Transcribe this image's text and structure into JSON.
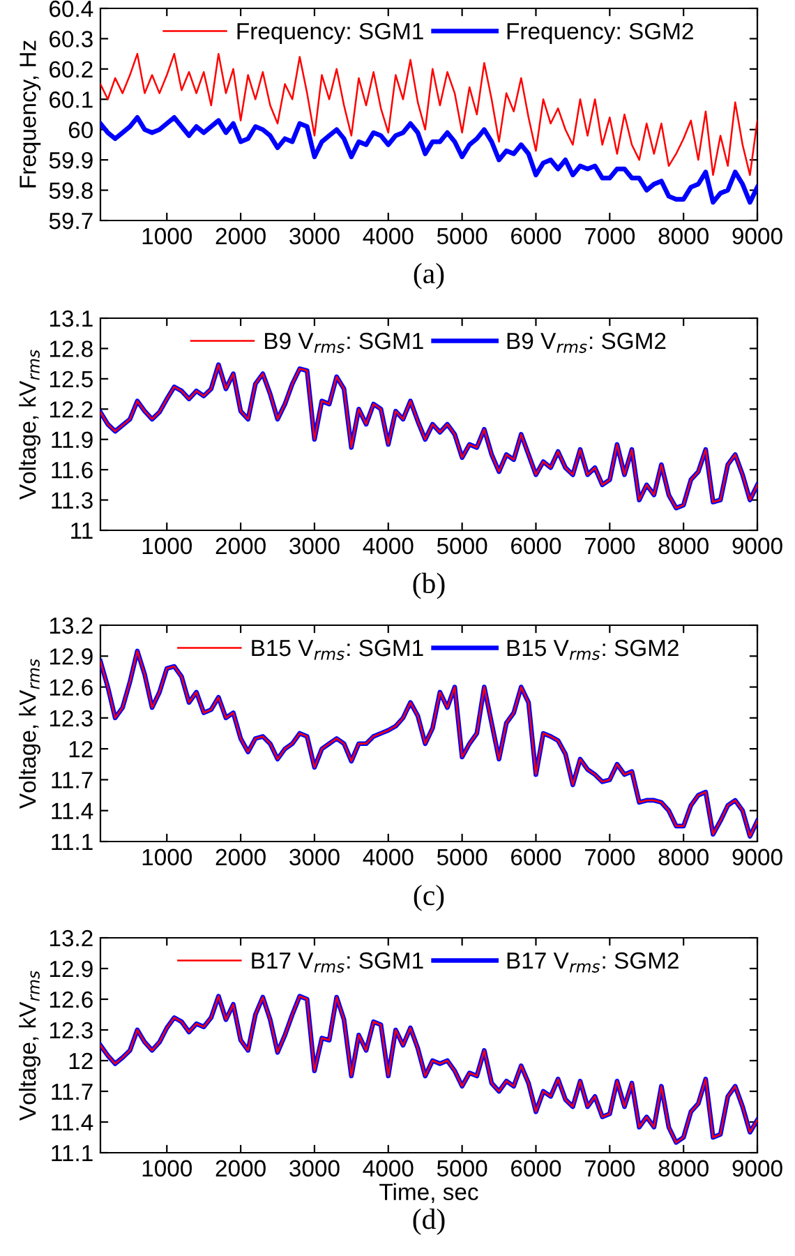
{
  "chart_data": [
    {
      "type": "line",
      "ylabel": "Frequency, Hz",
      "annotations": [
        "(a)"
      ],
      "legend": "top",
      "grid": false,
      "xlim": [
        100,
        9000
      ],
      "xticks": [
        1000,
        2000,
        3000,
        4000,
        5000,
        6000,
        7000,
        8000,
        9000
      ],
      "ylim": [
        59.7,
        60.4
      ],
      "yticks": [
        59.7,
        59.8,
        59.9,
        60,
        60.1,
        60.2,
        60.3,
        60.4
      ],
      "x": [
        100,
        200,
        300,
        400,
        500,
        600,
        700,
        800,
        900,
        1000,
        1100,
        1200,
        1300,
        1400,
        1500,
        1600,
        1700,
        1800,
        1900,
        2000,
        2100,
        2200,
        2300,
        2400,
        2500,
        2600,
        2700,
        2800,
        2900,
        3000,
        3100,
        3200,
        3300,
        3400,
        3500,
        3600,
        3700,
        3800,
        3900,
        4000,
        4100,
        4200,
        4300,
        4400,
        4500,
        4600,
        4700,
        4800,
        4900,
        5000,
        5100,
        5200,
        5300,
        5400,
        5500,
        5600,
        5700,
        5800,
        5900,
        6000,
        6100,
        6200,
        6300,
        6400,
        6500,
        6600,
        6700,
        6800,
        6900,
        7000,
        7100,
        7200,
        7300,
        7400,
        7500,
        7600,
        7700,
        7800,
        7900,
        8000,
        8100,
        8200,
        8300,
        8400,
        8500,
        8600,
        8700,
        8800,
        8900,
        9000
      ],
      "series": [
        {
          "name": "Frequency: SGM1",
          "color": "#ff0000",
          "values": [
            60.15,
            60.1,
            60.17,
            60.12,
            60.18,
            60.25,
            60.12,
            60.18,
            60.12,
            60.18,
            60.25,
            60.13,
            60.19,
            60.12,
            60.19,
            60.08,
            60.25,
            60.12,
            60.2,
            60.03,
            60.18,
            60.1,
            60.19,
            60.08,
            60.02,
            60.15,
            60.1,
            60.24,
            60.12,
            59.98,
            60.18,
            60.1,
            60.2,
            60.08,
            59.98,
            60.17,
            60.08,
            60.19,
            60.07,
            59.99,
            60.18,
            60.1,
            60.23,
            60.09,
            60.0,
            60.2,
            60.08,
            60.19,
            60.12,
            59.99,
            60.14,
            60.05,
            60.22,
            60.1,
            59.96,
            60.12,
            60.06,
            60.17,
            60.04,
            59.93,
            60.1,
            60.02,
            60.07,
            60.0,
            59.95,
            60.1,
            59.98,
            60.1,
            59.95,
            60.04,
            59.92,
            60.05,
            59.95,
            59.9,
            60.02,
            59.92,
            60.02,
            59.88,
            59.92,
            59.97,
            60.03,
            59.9,
            60.06,
            59.85,
            59.98,
            59.88,
            60.09,
            59.95,
            59.85,
            60.03
          ]
        },
        {
          "name": "Frequency: SGM2",
          "color": "#0000ff",
          "values": [
            60.02,
            59.99,
            59.97,
            59.99,
            60.01,
            60.04,
            60.0,
            59.99,
            60.0,
            60.02,
            60.04,
            60.01,
            59.98,
            60.01,
            59.99,
            60.01,
            60.03,
            59.99,
            60.02,
            59.96,
            59.97,
            60.01,
            60.0,
            59.98,
            59.94,
            59.97,
            59.96,
            60.02,
            60.01,
            59.91,
            59.96,
            59.98,
            60.0,
            59.97,
            59.91,
            59.96,
            59.95,
            59.99,
            59.98,
            59.95,
            59.98,
            59.99,
            60.02,
            59.99,
            59.92,
            59.96,
            59.96,
            59.99,
            59.96,
            59.91,
            59.95,
            59.97,
            60.0,
            59.96,
            59.9,
            59.93,
            59.92,
            59.95,
            59.92,
            59.85,
            59.89,
            59.9,
            59.87,
            59.9,
            59.85,
            59.88,
            59.87,
            59.88,
            59.84,
            59.84,
            59.87,
            59.87,
            59.84,
            59.84,
            59.8,
            59.82,
            59.83,
            59.78,
            59.77,
            59.77,
            59.81,
            59.82,
            59.86,
            59.76,
            59.79,
            59.8,
            59.86,
            59.82,
            59.76,
            59.81
          ]
        }
      ]
    },
    {
      "type": "line",
      "ylabel": "Voltage, kV$_{rms}$",
      "annotations": [
        "(b)"
      ],
      "legend": "top",
      "grid": false,
      "xlim": [
        100,
        9000
      ],
      "xticks": [
        1000,
        2000,
        3000,
        4000,
        5000,
        6000,
        7000,
        8000,
        9000
      ],
      "ylim": [
        11,
        13.1
      ],
      "yticks": [
        11,
        11.3,
        11.6,
        11.9,
        12.2,
        12.5,
        12.8,
        13.1
      ],
      "x": [
        100,
        200,
        300,
        400,
        500,
        600,
        700,
        800,
        900,
        1000,
        1100,
        1200,
        1300,
        1400,
        1500,
        1600,
        1700,
        1800,
        1900,
        2000,
        2100,
        2200,
        2300,
        2400,
        2500,
        2600,
        2700,
        2800,
        2900,
        3000,
        3100,
        3200,
        3300,
        3400,
        3500,
        3600,
        3700,
        3800,
        3900,
        4000,
        4100,
        4200,
        4300,
        4400,
        4500,
        4600,
        4700,
        4800,
        4900,
        5000,
        5100,
        5200,
        5300,
        5400,
        5500,
        5600,
        5700,
        5800,
        5900,
        6000,
        6100,
        6200,
        6300,
        6400,
        6500,
        6600,
        6700,
        6800,
        6900,
        7000,
        7100,
        7200,
        7300,
        7400,
        7500,
        7600,
        7700,
        7800,
        7900,
        8000,
        8100,
        8200,
        8300,
        8400,
        8500,
        8600,
        8700,
        8800,
        8900,
        9000
      ],
      "series": [
        {
          "name": "B9 V$_{rms}$: SGM1",
          "color": "#ff0000",
          "values": [
            12.17,
            12.05,
            11.98,
            12.04,
            12.1,
            12.28,
            12.18,
            12.1,
            12.17,
            12.3,
            12.42,
            12.38,
            12.3,
            12.38,
            12.33,
            12.4,
            12.64,
            12.4,
            12.55,
            12.18,
            12.1,
            12.45,
            12.55,
            12.35,
            12.1,
            12.25,
            12.45,
            12.6,
            12.58,
            11.9,
            12.28,
            12.25,
            12.52,
            12.4,
            11.82,
            12.2,
            12.05,
            12.25,
            12.2,
            11.85,
            12.18,
            12.1,
            12.28,
            12.08,
            11.9,
            12.05,
            11.97,
            12.05,
            11.95,
            11.72,
            11.85,
            11.82,
            12.0,
            11.75,
            11.58,
            11.75,
            11.7,
            11.95,
            11.75,
            11.55,
            11.68,
            11.62,
            11.78,
            11.62,
            11.55,
            11.8,
            11.55,
            11.62,
            11.45,
            11.5,
            11.85,
            11.55,
            11.8,
            11.3,
            11.45,
            11.35,
            11.65,
            11.35,
            11.22,
            11.25,
            11.5,
            11.58,
            11.8,
            11.28,
            11.3,
            11.65,
            11.75,
            11.55,
            11.3,
            11.45
          ]
        },
        {
          "name": "B9 V$_{rms}$: SGM2",
          "color": "#0000ff",
          "values": [
            12.17,
            12.05,
            11.98,
            12.04,
            12.1,
            12.28,
            12.18,
            12.1,
            12.17,
            12.3,
            12.42,
            12.38,
            12.3,
            12.38,
            12.33,
            12.4,
            12.64,
            12.4,
            12.55,
            12.18,
            12.1,
            12.45,
            12.55,
            12.35,
            12.1,
            12.25,
            12.45,
            12.6,
            12.58,
            11.9,
            12.28,
            12.25,
            12.52,
            12.4,
            11.82,
            12.2,
            12.05,
            12.25,
            12.2,
            11.85,
            12.18,
            12.1,
            12.28,
            12.08,
            11.9,
            12.05,
            11.97,
            12.05,
            11.95,
            11.72,
            11.85,
            11.82,
            12.0,
            11.75,
            11.58,
            11.75,
            11.7,
            11.95,
            11.75,
            11.55,
            11.68,
            11.62,
            11.78,
            11.62,
            11.55,
            11.8,
            11.55,
            11.62,
            11.45,
            11.5,
            11.85,
            11.55,
            11.8,
            11.3,
            11.45,
            11.35,
            11.65,
            11.35,
            11.22,
            11.25,
            11.5,
            11.58,
            11.8,
            11.28,
            11.3,
            11.65,
            11.75,
            11.55,
            11.3,
            11.45
          ]
        }
      ]
    },
    {
      "type": "line",
      "ylabel": "Voltage, kV$_{rms}$",
      "annotations": [
        "(c)"
      ],
      "legend": "top",
      "grid": false,
      "xlim": [
        100,
        9000
      ],
      "xticks": [
        1000,
        2000,
        3000,
        4000,
        5000,
        6000,
        7000,
        8000,
        9000
      ],
      "ylim": [
        11.1,
        13.2
      ],
      "yticks": [
        11.1,
        11.4,
        11.7,
        12,
        12.3,
        12.6,
        12.9,
        13.2
      ],
      "x": [
        100,
        200,
        300,
        400,
        500,
        600,
        700,
        800,
        900,
        1000,
        1100,
        1200,
        1300,
        1400,
        1500,
        1600,
        1700,
        1800,
        1900,
        2000,
        2100,
        2200,
        2300,
        2400,
        2500,
        2600,
        2700,
        2800,
        2900,
        3000,
        3100,
        3200,
        3300,
        3400,
        3500,
        3600,
        3700,
        3800,
        3900,
        4000,
        4100,
        4200,
        4300,
        4400,
        4500,
        4600,
        4700,
        4800,
        4900,
        5000,
        5100,
        5200,
        5300,
        5400,
        5500,
        5600,
        5700,
        5800,
        5900,
        6000,
        6100,
        6200,
        6300,
        6400,
        6500,
        6600,
        6700,
        6800,
        6900,
        7000,
        7100,
        7200,
        7300,
        7400,
        7500,
        7600,
        7700,
        7800,
        7900,
        8000,
        8100,
        8200,
        8300,
        8400,
        8500,
        8600,
        8700,
        8800,
        8900,
        9000
      ],
      "series": [
        {
          "name": "B15 V$_{rms}$: SGM1",
          "color": "#ff0000",
          "values": [
            12.85,
            12.6,
            12.3,
            12.4,
            12.65,
            12.95,
            12.72,
            12.4,
            12.55,
            12.78,
            12.8,
            12.7,
            12.45,
            12.55,
            12.35,
            12.38,
            12.5,
            12.3,
            12.35,
            12.1,
            11.97,
            12.1,
            12.12,
            12.05,
            11.9,
            12.0,
            12.05,
            12.15,
            12.12,
            11.82,
            12.0,
            12.05,
            12.1,
            12.05,
            11.88,
            12.05,
            12.05,
            12.12,
            12.15,
            12.18,
            12.22,
            12.3,
            12.45,
            12.32,
            12.05,
            12.2,
            12.55,
            12.4,
            12.6,
            11.92,
            12.05,
            12.15,
            12.6,
            12.25,
            11.9,
            12.25,
            12.35,
            12.6,
            12.45,
            11.75,
            12.15,
            12.12,
            12.08,
            11.95,
            11.65,
            11.9,
            11.8,
            11.75,
            11.68,
            11.7,
            11.85,
            11.75,
            11.78,
            11.48,
            11.5,
            11.5,
            11.48,
            11.4,
            11.25,
            11.25,
            11.45,
            11.55,
            11.58,
            11.17,
            11.3,
            11.45,
            11.5,
            11.4,
            11.15,
            11.3
          ]
        },
        {
          "name": "B15 V$_{rms}$: SGM2",
          "color": "#0000ff",
          "values": [
            12.85,
            12.6,
            12.3,
            12.4,
            12.65,
            12.95,
            12.72,
            12.4,
            12.55,
            12.78,
            12.8,
            12.7,
            12.45,
            12.55,
            12.35,
            12.38,
            12.5,
            12.3,
            12.35,
            12.1,
            11.97,
            12.1,
            12.12,
            12.05,
            11.9,
            12.0,
            12.05,
            12.15,
            12.12,
            11.82,
            12.0,
            12.05,
            12.1,
            12.05,
            11.88,
            12.05,
            12.05,
            12.12,
            12.15,
            12.18,
            12.22,
            12.3,
            12.45,
            12.32,
            12.05,
            12.2,
            12.55,
            12.4,
            12.6,
            11.92,
            12.05,
            12.15,
            12.6,
            12.25,
            11.9,
            12.25,
            12.35,
            12.6,
            12.45,
            11.75,
            12.15,
            12.12,
            12.08,
            11.95,
            11.65,
            11.9,
            11.8,
            11.75,
            11.68,
            11.7,
            11.85,
            11.75,
            11.78,
            11.48,
            11.5,
            11.5,
            11.48,
            11.4,
            11.25,
            11.25,
            11.45,
            11.55,
            11.58,
            11.17,
            11.3,
            11.45,
            11.5,
            11.4,
            11.15,
            11.3
          ]
        }
      ]
    },
    {
      "type": "line",
      "xlabel": "Time, sec",
      "ylabel": "Voltage, kV$_{rms}$",
      "annotations": [
        "(d)"
      ],
      "legend": "top",
      "grid": false,
      "xlim": [
        100,
        9000
      ],
      "xticks": [
        1000,
        2000,
        3000,
        4000,
        5000,
        6000,
        7000,
        8000,
        9000
      ],
      "ylim": [
        11.1,
        13.2
      ],
      "yticks": [
        11.1,
        11.4,
        11.7,
        12,
        12.3,
        12.6,
        12.9,
        13.2
      ],
      "x": [
        100,
        200,
        300,
        400,
        500,
        600,
        700,
        800,
        900,
        1000,
        1100,
        1200,
        1300,
        1400,
        1500,
        1600,
        1700,
        1800,
        1900,
        2000,
        2100,
        2200,
        2300,
        2400,
        2500,
        2600,
        2700,
        2800,
        2900,
        3000,
        3100,
        3200,
        3300,
        3400,
        3500,
        3600,
        3700,
        3800,
        3900,
        4000,
        4100,
        4200,
        4300,
        4400,
        4500,
        4600,
        4700,
        4800,
        4900,
        5000,
        5100,
        5200,
        5300,
        5400,
        5500,
        5600,
        5700,
        5800,
        5900,
        6000,
        6100,
        6200,
        6300,
        6400,
        6500,
        6600,
        6700,
        6800,
        6900,
        7000,
        7100,
        7200,
        7300,
        7400,
        7500,
        7600,
        7700,
        7800,
        7900,
        8000,
        8100,
        8200,
        8300,
        8400,
        8500,
        8600,
        8700,
        8800,
        8900,
        9000
      ],
      "series": [
        {
          "name": "B17 V$_{rms}$: SGM1",
          "color": "#ff0000",
          "values": [
            12.15,
            12.05,
            11.97,
            12.03,
            12.1,
            12.3,
            12.18,
            12.1,
            12.18,
            12.32,
            12.42,
            12.38,
            12.28,
            12.36,
            12.33,
            12.42,
            12.63,
            12.4,
            12.55,
            12.2,
            12.1,
            12.45,
            12.62,
            12.4,
            12.08,
            12.25,
            12.45,
            12.63,
            12.6,
            11.9,
            12.22,
            12.2,
            12.62,
            12.4,
            11.85,
            12.25,
            12.1,
            12.38,
            12.35,
            11.85,
            12.3,
            12.15,
            12.32,
            12.12,
            11.85,
            12.0,
            11.97,
            12.0,
            11.9,
            11.75,
            11.88,
            11.85,
            12.1,
            11.78,
            11.7,
            11.8,
            11.75,
            11.95,
            11.78,
            11.5,
            11.7,
            11.65,
            11.82,
            11.62,
            11.55,
            11.8,
            11.55,
            11.65,
            11.45,
            11.48,
            11.8,
            11.55,
            11.78,
            11.35,
            11.45,
            11.35,
            11.75,
            11.35,
            11.2,
            11.25,
            11.5,
            11.58,
            11.82,
            11.25,
            11.28,
            11.65,
            11.75,
            11.55,
            11.3,
            11.42
          ]
        },
        {
          "name": "B17 V$_{rms}$: SGM2",
          "color": "#0000ff",
          "values": [
            12.15,
            12.05,
            11.97,
            12.03,
            12.1,
            12.3,
            12.18,
            12.1,
            12.18,
            12.32,
            12.42,
            12.38,
            12.28,
            12.36,
            12.33,
            12.42,
            12.63,
            12.4,
            12.55,
            12.2,
            12.1,
            12.45,
            12.62,
            12.4,
            12.08,
            12.25,
            12.45,
            12.63,
            12.6,
            11.9,
            12.22,
            12.2,
            12.62,
            12.4,
            11.85,
            12.25,
            12.1,
            12.38,
            12.35,
            11.85,
            12.3,
            12.15,
            12.32,
            12.12,
            11.85,
            12.0,
            11.97,
            12.0,
            11.9,
            11.75,
            11.88,
            11.85,
            12.1,
            11.78,
            11.7,
            11.8,
            11.75,
            11.95,
            11.78,
            11.5,
            11.7,
            11.65,
            11.82,
            11.62,
            11.55,
            11.8,
            11.55,
            11.65,
            11.45,
            11.48,
            11.8,
            11.55,
            11.78,
            11.35,
            11.45,
            11.35,
            11.75,
            11.35,
            11.2,
            11.25,
            11.5,
            11.58,
            11.82,
            11.25,
            11.28,
            11.65,
            11.75,
            11.55,
            11.3,
            11.42
          ]
        }
      ]
    }
  ]
}
